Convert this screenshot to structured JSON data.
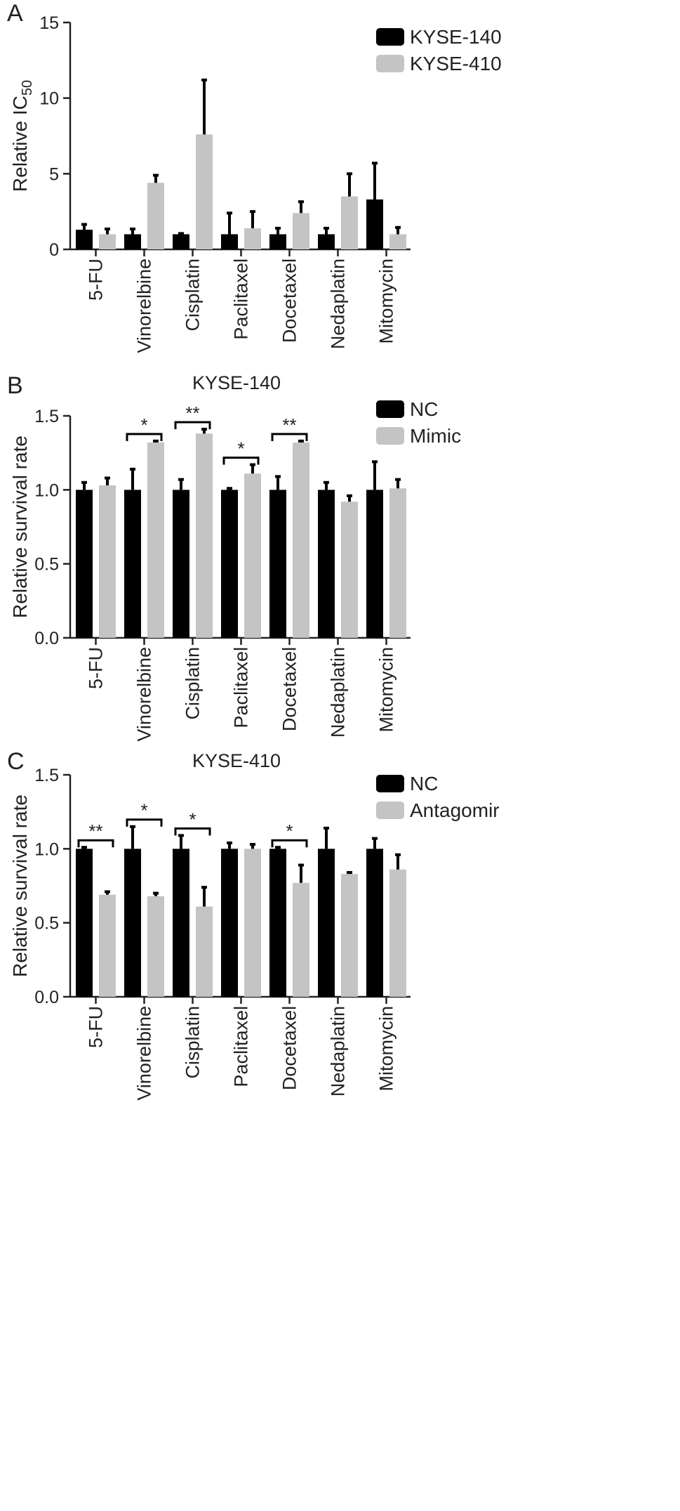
{
  "panels": [
    {
      "letter": "A",
      "title": ""
    },
    {
      "letter": "B",
      "title": "KYSE-140"
    },
    {
      "letter": "C",
      "title": "KYSE-410"
    }
  ],
  "chart_data": [
    {
      "type": "bar",
      "panel": "A",
      "title": "",
      "xlabel": "",
      "ylabel": "Relative IC",
      "ylabel_subscript": "50",
      "ylim": [
        0,
        15
      ],
      "yticks": [
        "0",
        "5",
        "10",
        "15"
      ],
      "categories": [
        "5-FU",
        "Vinorelbine",
        "Cisplatin",
        "Paclitaxel",
        "Docetaxel",
        "Nedaplatin",
        "Mitomycin"
      ],
      "legend_position": "top-right",
      "colors": [
        "#000000",
        "#c4c4c4"
      ],
      "series": [
        {
          "name": "KYSE-140",
          "values": [
            1.3,
            1.0,
            1.0,
            1.0,
            1.0,
            1.0,
            3.3
          ],
          "errors": [
            0.35,
            0.35,
            0.05,
            1.4,
            0.4,
            0.4,
            2.4
          ]
        },
        {
          "name": "KYSE-410",
          "values": [
            1.0,
            4.4,
            7.6,
            1.4,
            2.4,
            3.5,
            1.0
          ],
          "errors": [
            0.35,
            0.5,
            3.6,
            1.1,
            0.75,
            1.5,
            0.45
          ]
        }
      ],
      "significance": []
    },
    {
      "type": "bar",
      "panel": "B",
      "title": "KYSE-140",
      "xlabel": "",
      "ylabel": "Relative survival rate",
      "ylim": [
        0,
        1.5
      ],
      "yticks": [
        "0.0",
        "0.5",
        "1.0",
        "1.5"
      ],
      "categories": [
        "5-FU",
        "Vinorelbine",
        "Cisplatin",
        "Paclitaxel",
        "Docetaxel",
        "Nedaplatin",
        "Mitomycin"
      ],
      "legend_position": "top-right",
      "colors": [
        "#000000",
        "#c4c4c4"
      ],
      "series": [
        {
          "name": "NC",
          "values": [
            1.0,
            1.0,
            1.0,
            1.0,
            1.0,
            1.0,
            1.0
          ],
          "errors": [
            0.05,
            0.14,
            0.07,
            0.01,
            0.09,
            0.05,
            0.19
          ]
        },
        {
          "name": "Mimic",
          "values": [
            1.03,
            1.32,
            1.38,
            1.11,
            1.32,
            0.92,
            1.01
          ],
          "errors": [
            0.05,
            0.01,
            0.03,
            0.06,
            0.01,
            0.04,
            0.06
          ]
        }
      ],
      "significance": [
        {
          "category": 1,
          "label": "*"
        },
        {
          "category": 2,
          "label": "**"
        },
        {
          "category": 3,
          "label": "*"
        },
        {
          "category": 4,
          "label": "**"
        }
      ]
    },
    {
      "type": "bar",
      "panel": "C",
      "title": "KYSE-410",
      "xlabel": "",
      "ylabel": "Relative survival rate",
      "ylim": [
        0,
        1.5
      ],
      "yticks": [
        "0.0",
        "0.5",
        "1.0",
        "1.5"
      ],
      "categories": [
        "5-FU",
        "Vinorelbine",
        "Cisplatin",
        "Paclitaxel",
        "Docetaxel",
        "Nedaplatin",
        "Mitomycin"
      ],
      "legend_position": "top-right",
      "colors": [
        "#000000",
        "#c4c4c4"
      ],
      "series": [
        {
          "name": "NC",
          "values": [
            1.0,
            1.0,
            1.0,
            1.0,
            1.0,
            1.0,
            1.0
          ],
          "errors": [
            0.01,
            0.15,
            0.09,
            0.04,
            0.01,
            0.14,
            0.07
          ]
        },
        {
          "name": "Antagomir",
          "values": [
            0.69,
            0.68,
            0.61,
            1.0,
            0.77,
            0.83,
            0.86
          ],
          "errors": [
            0.02,
            0.02,
            0.13,
            0.03,
            0.12,
            0.01,
            0.1
          ]
        }
      ],
      "significance": [
        {
          "category": 0,
          "label": "**"
        },
        {
          "category": 1,
          "label": "*"
        },
        {
          "category": 2,
          "label": "*"
        },
        {
          "category": 4,
          "label": "*"
        }
      ]
    }
  ]
}
